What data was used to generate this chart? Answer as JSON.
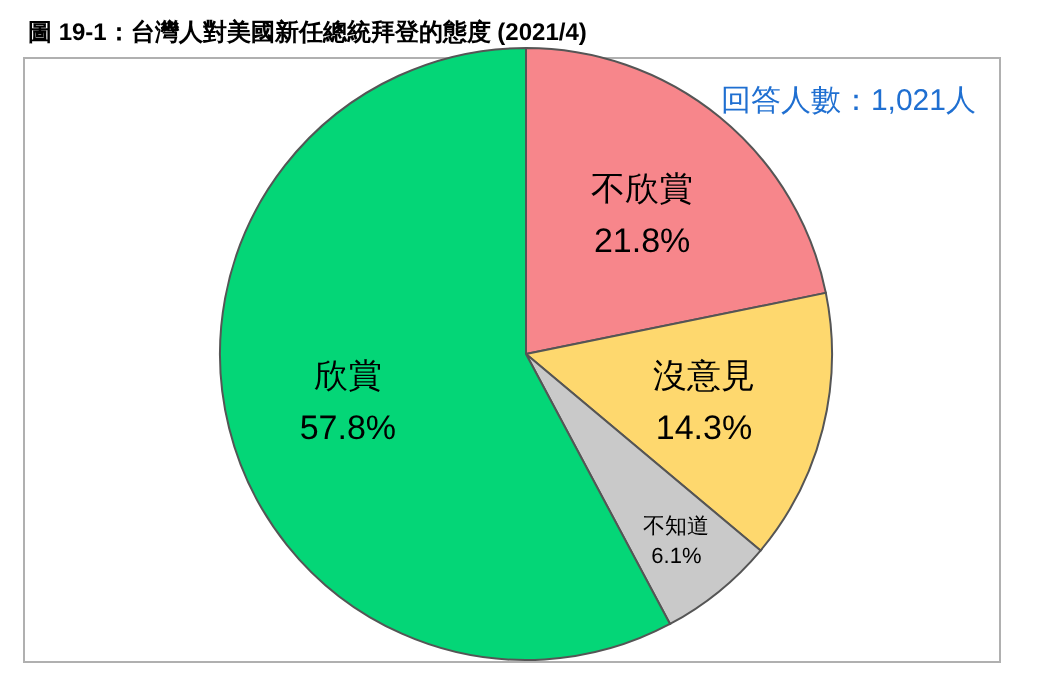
{
  "chart_data": {
    "type": "pie",
    "title": "圖 19-1：台灣人對美國新任總統拜登的態度 (2021/4)",
    "annotations": [
      "回答人數：1,021人"
    ],
    "categories": [
      "不欣賞",
      "沒意見",
      "不知道",
      "欣賞"
    ],
    "values": [
      21.8,
      14.3,
      6.1,
      57.8
    ],
    "value_labels": [
      "21.8%",
      "14.3%",
      "6.1%",
      "57.8%"
    ],
    "colors": [
      "#f7868b",
      "#fed86e",
      "#c9c9c9",
      "#04d677"
    ]
  }
}
